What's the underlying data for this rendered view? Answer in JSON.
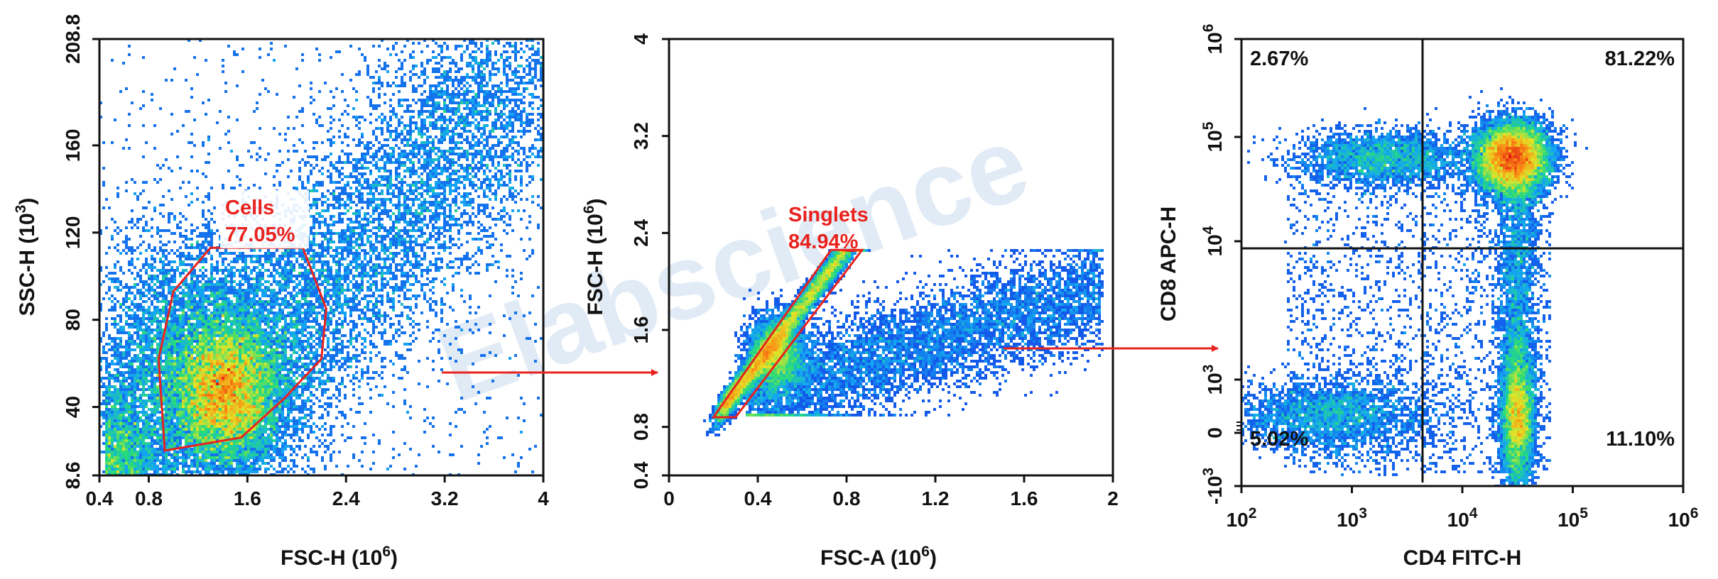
{
  "watermark": "Elabscience",
  "chart_data": [
    {
      "type": "scatter",
      "title": "",
      "xlabel": "FSC-H  (10^6)",
      "ylabel": "SSC-H  (10^3)",
      "x_label_base": "FSC-H  (10",
      "x_label_exp": "6",
      "y_label_base": "SSC-H  (10",
      "y_label_exp": "3",
      "xlim": [
        0.4,
        4
      ],
      "ylim": [
        8.6,
        208.8
      ],
      "x_ticks": [
        0.4,
        0.8,
        1.6,
        2.4,
        3.2,
        4
      ],
      "x_tick_labels": [
        "0.4",
        "0.8",
        "1.6",
        "2.4",
        "3.2",
        "4"
      ],
      "y_ticks": [
        8.6,
        40,
        80,
        120,
        160,
        208.8
      ],
      "y_tick_labels": [
        "8.6",
        "40",
        "80",
        "120",
        "160",
        "208.8"
      ],
      "density_peak": {
        "x": 1.42,
        "y": 46
      },
      "gate": {
        "name": "Cells",
        "percent": "77.05%",
        "polygon": [
          [
            0.93,
            20
          ],
          [
            1.55,
            26
          ],
          [
            1.9,
            44
          ],
          [
            2.2,
            62
          ],
          [
            2.24,
            85
          ],
          [
            2.05,
            113
          ],
          [
            1.3,
            113
          ],
          [
            1.0,
            93
          ],
          [
            0.88,
            62
          ]
        ]
      }
    },
    {
      "type": "scatter",
      "title": "",
      "xlabel": "FSC-A  (10^6)",
      "ylabel": "FSC-H  (10^6)",
      "x_label_base": "FSC-A  (10",
      "x_label_exp": "6",
      "y_label_base": "FSC-H  (10",
      "y_label_exp": "6",
      "xlim": [
        0,
        2
      ],
      "ylim": [
        0.4,
        4
      ],
      "x_ticks": [
        0,
        0.4,
        0.8,
        1.2,
        1.6,
        2
      ],
      "x_tick_labels": [
        "0",
        "0.4",
        "0.8",
        "1.2",
        "1.6",
        "2"
      ],
      "y_ticks": [
        0.4,
        0.8,
        1.6,
        2.4,
        3.2,
        4
      ],
      "y_tick_labels": [
        "0.4",
        "0.8",
        "1.6",
        "2.4",
        "3.2",
        "4"
      ],
      "density_peak": {
        "x": 0.48,
        "y": 1.4
      },
      "gate": {
        "name": "Singlets",
        "percent": "84.94%",
        "polygon": [
          [
            0.2,
            0.88
          ],
          [
            0.3,
            0.88
          ],
          [
            0.87,
            2.26
          ],
          [
            0.73,
            2.26
          ]
        ]
      }
    },
    {
      "type": "scatter",
      "title": "",
      "xlabel": "CD4 FITC-H",
      "ylabel": "CD8 APC-H",
      "x_scale": "log",
      "y_scale": "biexponential",
      "x_ticks_exp": [
        "2",
        "3",
        "4",
        "5",
        "6"
      ],
      "x_tick_base": "10",
      "y_ticks": [
        {
          "base": "10",
          "exp": "6"
        },
        {
          "base": "10",
          "exp": "5"
        },
        {
          "base": "10",
          "exp": "4"
        },
        {
          "base": "10",
          "exp": "3"
        },
        {
          "base": "0",
          "exp": ""
        },
        {
          "base": "-10",
          "exp": "3"
        }
      ],
      "quadrant_divider": {
        "x": 4300,
        "y": 8000
      },
      "quadrants": {
        "upper_left": "2.67%",
        "upper_right": "81.22%",
        "lower_left": "5.02%",
        "lower_right": "11.10%"
      }
    }
  ]
}
